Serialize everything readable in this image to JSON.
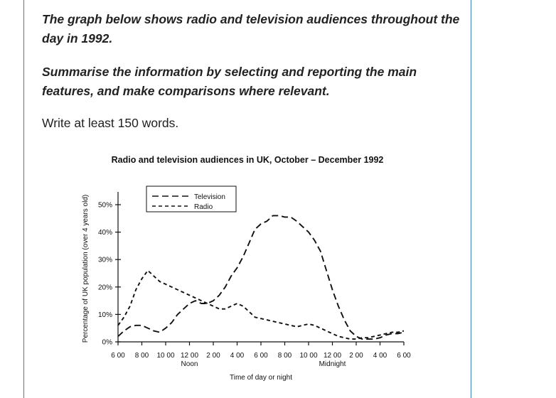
{
  "prompt": {
    "line1": "The graph below shows radio and television audiences throughout the day in 1992.",
    "line2": "Summarise the information by selecting and reporting the main features, and make comparisons where relevant.",
    "line3": "Write at least 150 words."
  },
  "chart_data": {
    "type": "line",
    "title": "Radio and television audiences in UK, October – December 1992",
    "xlabel": "Time of day or night",
    "ylabel": "Percentage of UK population (over 4 years old)",
    "x_ticks": [
      "6 00",
      "8 00",
      "10 00",
      "12 00",
      "2 00",
      "4 00",
      "6 00",
      "8 00",
      "10 00",
      "12 00",
      "2 00",
      "4 00",
      "6 00"
    ],
    "x_sublabels": [
      {
        "index": 3,
        "text": "Noon"
      },
      {
        "index": 9,
        "text": "Midnight"
      }
    ],
    "y_ticks": [
      "0%",
      "10%",
      "20%",
      "30%",
      "40%",
      "50%"
    ],
    "ylim": [
      0,
      50
    ],
    "legend": "top-center",
    "series": [
      {
        "name": "Television",
        "dash": "9,5",
        "points": [
          [
            0,
            2
          ],
          [
            0.5,
            4
          ],
          [
            1,
            5.5
          ],
          [
            1.5,
            6
          ],
          [
            2,
            6
          ],
          [
            2.5,
            5
          ],
          [
            3,
            4
          ],
          [
            3.5,
            3.5
          ],
          [
            4,
            5
          ],
          [
            4.5,
            7
          ],
          [
            5,
            10
          ],
          [
            5.5,
            12
          ],
          [
            6,
            14
          ],
          [
            6.5,
            15
          ],
          [
            7,
            14
          ],
          [
            7.5,
            14
          ],
          [
            8,
            15
          ],
          [
            8.5,
            17
          ],
          [
            9,
            20
          ],
          [
            9.5,
            24
          ],
          [
            10,
            27
          ],
          [
            10.5,
            31
          ],
          [
            11,
            36
          ],
          [
            11.5,
            41
          ],
          [
            12,
            43
          ],
          [
            12.5,
            44
          ],
          [
            13,
            46
          ],
          [
            13.5,
            46
          ],
          [
            14,
            45.5
          ],
          [
            14.5,
            45.5
          ],
          [
            15,
            44
          ],
          [
            15.5,
            42
          ],
          [
            16,
            40
          ],
          [
            16.5,
            37
          ],
          [
            17,
            33
          ],
          [
            17.5,
            26
          ],
          [
            18,
            19
          ],
          [
            18.5,
            13
          ],
          [
            19,
            8
          ],
          [
            19.5,
            4
          ],
          [
            20,
            2
          ],
          [
            20.5,
            1
          ],
          [
            21,
            1
          ],
          [
            21.5,
            1
          ],
          [
            22,
            1.5
          ],
          [
            22.5,
            2.5
          ],
          [
            23,
            3
          ],
          [
            23.5,
            3
          ],
          [
            24,
            3.5
          ]
        ]
      },
      {
        "name": "Radio",
        "dash": "5,4",
        "points": [
          [
            0,
            6
          ],
          [
            0.5,
            9
          ],
          [
            1,
            13
          ],
          [
            1.5,
            19
          ],
          [
            2,
            23
          ],
          [
            2.5,
            26
          ],
          [
            3,
            24
          ],
          [
            3.5,
            22
          ],
          [
            4,
            21
          ],
          [
            4.5,
            20
          ],
          [
            5,
            19
          ],
          [
            5.5,
            18
          ],
          [
            6,
            17
          ],
          [
            6.5,
            16
          ],
          [
            7,
            15
          ],
          [
            7.5,
            14
          ],
          [
            8,
            13
          ],
          [
            8.5,
            12
          ],
          [
            9,
            12
          ],
          [
            9.5,
            13
          ],
          [
            10,
            14
          ],
          [
            10.5,
            13
          ],
          [
            11,
            11
          ],
          [
            11.5,
            9
          ],
          [
            12,
            8.5
          ],
          [
            12.5,
            8
          ],
          [
            13,
            7.5
          ],
          [
            13.5,
            7
          ],
          [
            14,
            6.5
          ],
          [
            14.5,
            6
          ],
          [
            15,
            5.5
          ],
          [
            15.5,
            6
          ],
          [
            16,
            6.5
          ],
          [
            16.5,
            6
          ],
          [
            17,
            5
          ],
          [
            17.5,
            4
          ],
          [
            18,
            3
          ],
          [
            18.5,
            2
          ],
          [
            19,
            1.5
          ],
          [
            19.5,
            1
          ],
          [
            20,
            1
          ],
          [
            20.5,
            1.5
          ],
          [
            21,
            1.5
          ],
          [
            21.5,
            2
          ],
          [
            22,
            2.5
          ],
          [
            22.5,
            3
          ],
          [
            23,
            3.5
          ],
          [
            23.5,
            3.5
          ],
          [
            24,
            4
          ]
        ]
      }
    ],
    "colors": {
      "line": "#111111",
      "frame": "#3a7fbf"
    }
  }
}
